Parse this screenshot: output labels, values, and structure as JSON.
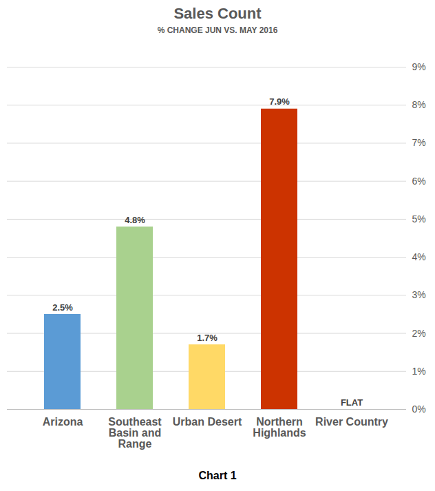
{
  "chart_data": {
    "type": "bar",
    "title": "Sales Count",
    "subtitle": "% CHANGE JUN VS. MAY 2016",
    "caption": "Chart 1",
    "categories": [
      "Arizona",
      "Southeast Basin and Range",
      "Urban Desert",
      "Northern Highlands",
      "River Country"
    ],
    "values": [
      2.5,
      4.8,
      1.7,
      7.9,
      0
    ],
    "value_labels": [
      "2.5%",
      "4.8%",
      "1.7%",
      "7.9%",
      "FLAT"
    ],
    "colors": [
      "#5b9bd5",
      "#a9d18e",
      "#ffd966",
      "#cc3300",
      "#808080"
    ],
    "ylim": [
      0,
      9
    ],
    "yticks": [
      {
        "value": 0,
        "label": "0%"
      },
      {
        "value": 1,
        "label": "1%"
      },
      {
        "value": 2,
        "label": "2%"
      },
      {
        "value": 3,
        "label": "3%"
      },
      {
        "value": 4,
        "label": "4%"
      },
      {
        "value": 5,
        "label": "5%"
      },
      {
        "value": 6,
        "label": "6%"
      },
      {
        "value": 7,
        "label": "7%"
      },
      {
        "value": 8,
        "label": "8%"
      },
      {
        "value": 9,
        "label": "9%"
      }
    ],
    "grid": true,
    "data_labels": true
  }
}
